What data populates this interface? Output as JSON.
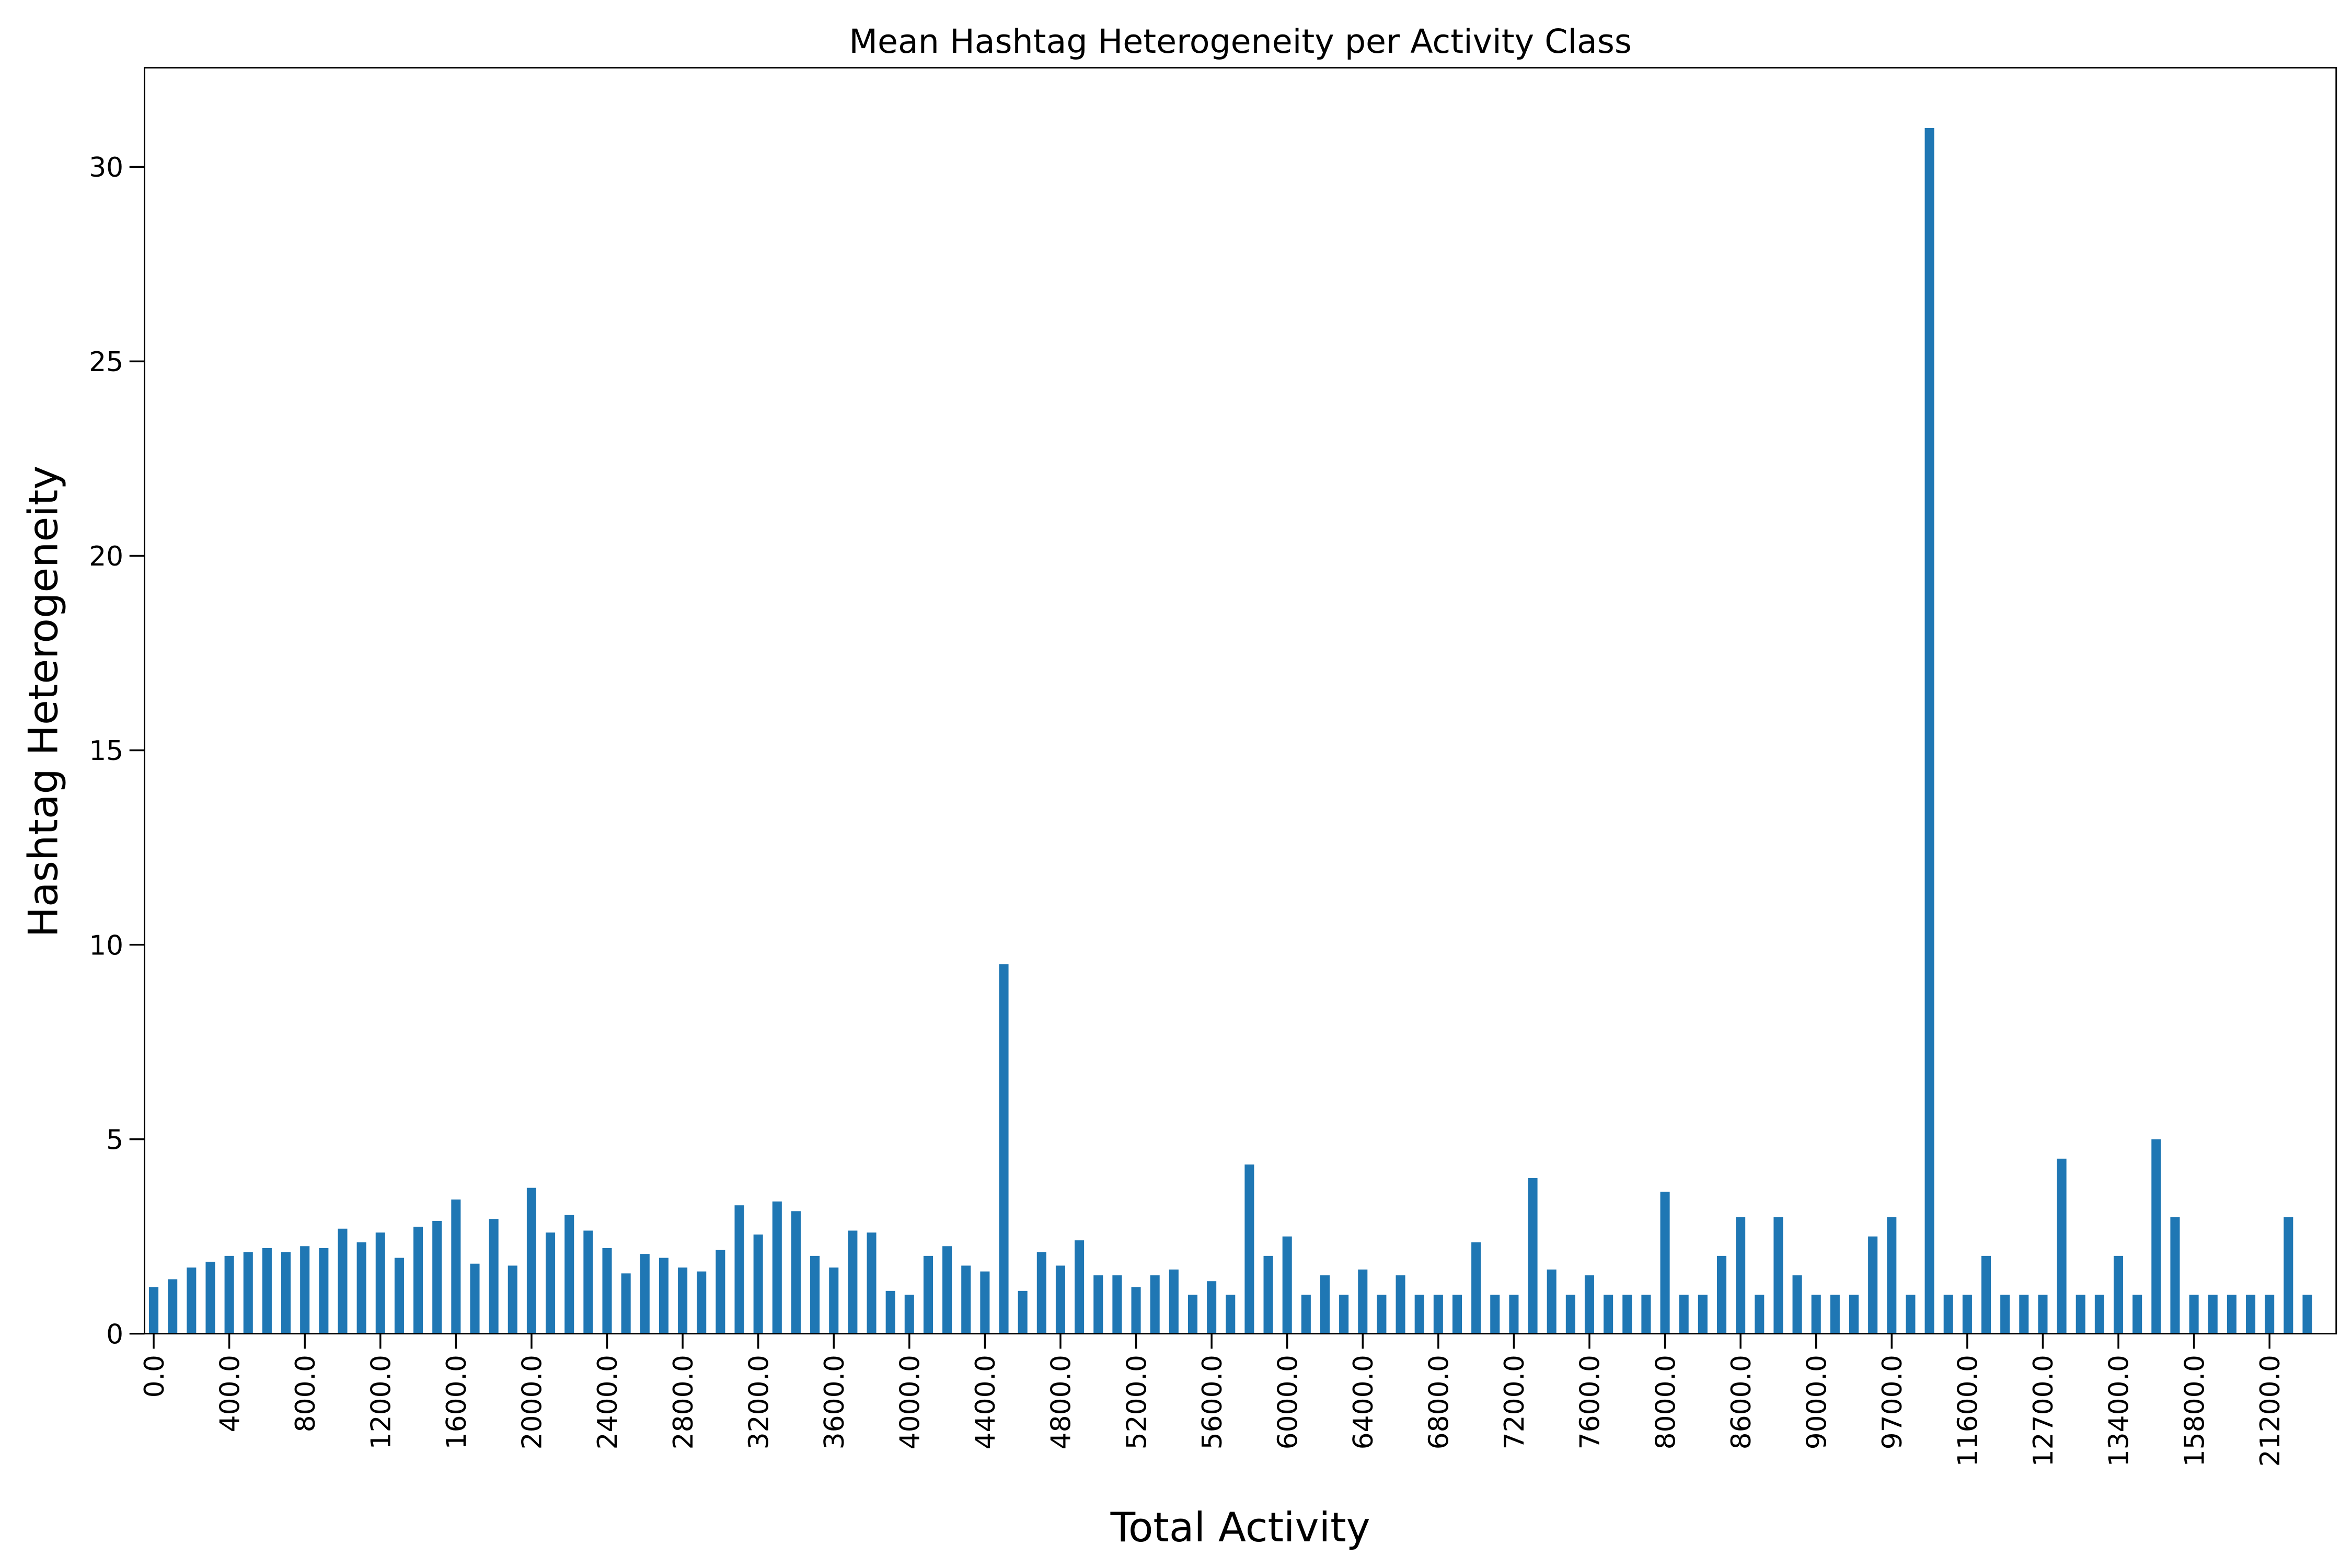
{
  "chart_data": {
    "type": "bar",
    "title": "Mean Hashtag Heterogeneity per Activity Class",
    "x_label": "Total Activity",
    "y_label": "Hashtag Heterogeneity",
    "color": "#1f77b4",
    "categories": [
      "0.0",
      null,
      null,
      null,
      "400.0",
      null,
      null,
      null,
      "800.0",
      null,
      null,
      null,
      "1200.0",
      null,
      null,
      null,
      "1600.0",
      null,
      null,
      null,
      "2000.0",
      null,
      null,
      null,
      "2400.0",
      null,
      null,
      null,
      "2800.0",
      null,
      null,
      null,
      "3200.0",
      null,
      null,
      null,
      "3600.0",
      null,
      null,
      null,
      "4000.0",
      null,
      null,
      null,
      "4400.0",
      null,
      null,
      null,
      "4800.0",
      null,
      null,
      null,
      "5200.0",
      null,
      null,
      null,
      "5600.0",
      null,
      null,
      null,
      "6000.0",
      null,
      null,
      null,
      "6400.0",
      null,
      null,
      null,
      "6800.0",
      null,
      null,
      null,
      "7200.0",
      null,
      null,
      null,
      "7600.0",
      null,
      null,
      null,
      "8000.0",
      null,
      null,
      null,
      "8600.0",
      null,
      null,
      null,
      "9000.0",
      null,
      null,
      null,
      "9700.0",
      null,
      null,
      null,
      "11600.0",
      null,
      null,
      null,
      "12700.0",
      null,
      null,
      null,
      "13400.0",
      null,
      null,
      null,
      "15800.0",
      null,
      null,
      null,
      "21200.0",
      null,
      null
    ],
    "values": [
      1.2,
      1.4,
      1.7,
      1.85,
      2.0,
      2.1,
      2.2,
      2.1,
      2.25,
      2.2,
      2.7,
      2.35,
      2.6,
      1.95,
      2.75,
      2.9,
      3.45,
      1.8,
      2.95,
      1.75,
      3.75,
      2.6,
      3.05,
      2.65,
      2.2,
      1.55,
      2.05,
      1.95,
      1.7,
      1.6,
      2.15,
      3.3,
      2.55,
      3.4,
      3.15,
      2.0,
      1.7,
      2.65,
      2.6,
      1.1,
      1.0,
      2.0,
      2.25,
      1.75,
      1.6,
      9.5,
      1.1,
      2.1,
      1.75,
      2.4,
      1.5,
      1.5,
      1.2,
      1.5,
      1.65,
      1.0,
      1.35,
      1.0,
      4.35,
      2.0,
      2.5,
      1.0,
      1.5,
      1.0,
      1.65,
      1.0,
      1.5,
      1.0,
      1.0,
      1.0,
      2.35,
      1.0,
      1.0,
      4.0,
      1.65,
      1.0,
      1.5,
      1.0,
      1.0,
      1.0,
      3.65,
      1.0,
      1.0,
      2.0,
      3.0,
      1.0,
      3.0,
      1.5,
      1.0,
      1.0,
      1.0,
      2.5,
      3.0,
      1.0,
      31.0,
      1.0,
      1.0,
      2.0,
      1.0,
      1.0,
      1.0,
      4.5,
      1.0,
      1.0,
      2.0,
      1.0,
      5.0,
      3.0,
      1.0,
      1.0,
      1.0,
      1.0,
      1.0,
      3.0,
      1.0
    ],
    "ylim": [
      0,
      32.55
    ],
    "yticks": [
      0,
      5,
      10,
      15,
      20,
      25,
      30
    ],
    "grid": false
  }
}
